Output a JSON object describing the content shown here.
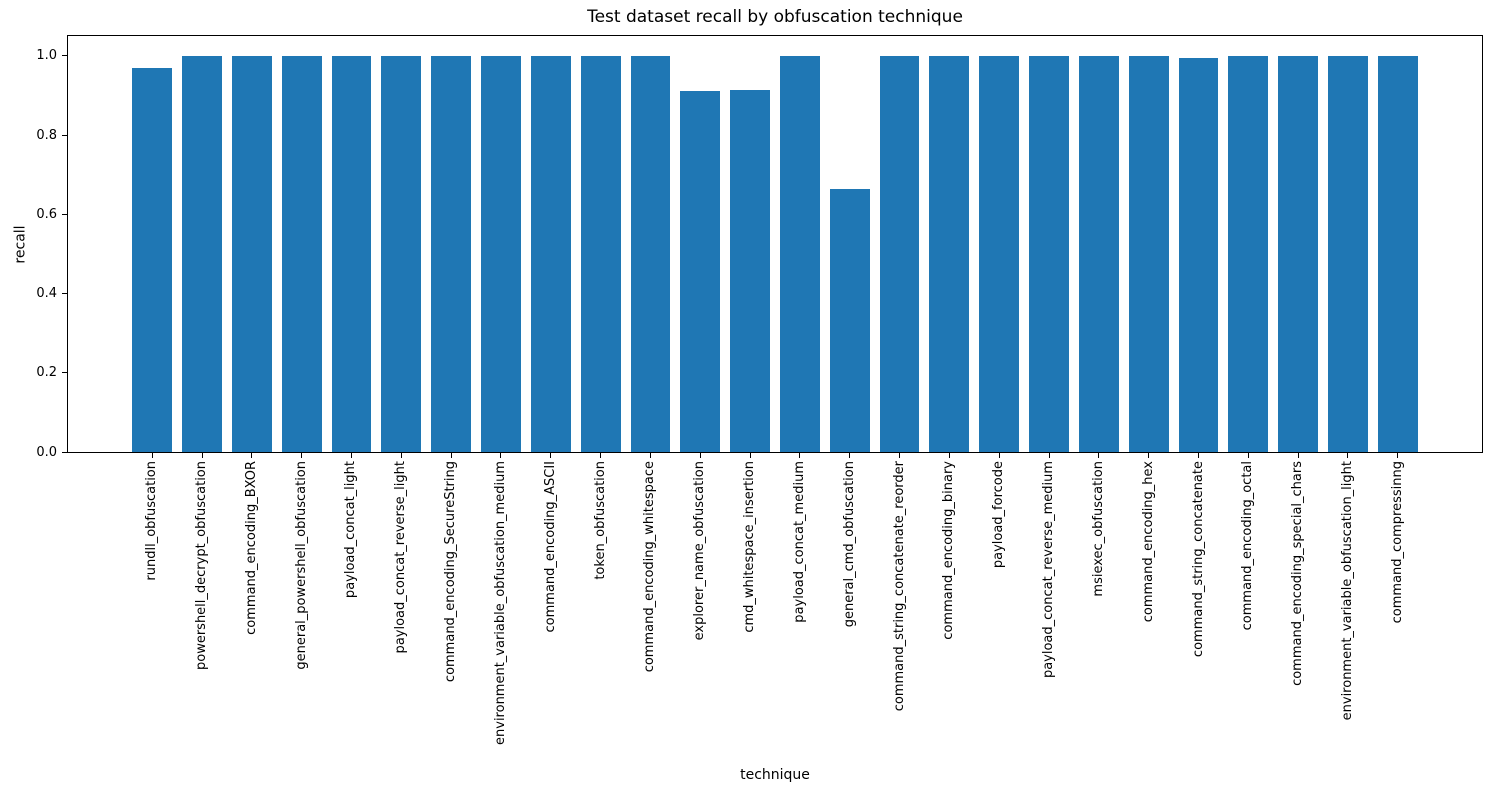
{
  "chart_data": {
    "type": "bar",
    "title": "Test dataset recall by obfuscation technique",
    "xlabel": "technique",
    "ylabel": "recall",
    "categories": [
      "rundll_obfuscation",
      "powershell_decrypt_obfuscation",
      "command_encoding_BXOR",
      "general_powershell_obfuscation",
      "payload_concat_light",
      "payload_concat_reverse_light",
      "command_encoding_SecureString",
      "environment_variable_obfuscation_medium",
      "command_encoding_ASCII",
      "token_obfuscation",
      "command_encoding_whitespace",
      "explorer_name_obfuscation",
      "cmd_whitespace_insertion",
      "payload_concat_medium",
      "general_cmd_obfuscation",
      "command_string_concatenate_reorder",
      "command_encoding_binary",
      "payload_forcode",
      "payload_concat_reverse_medium",
      "msiexec_obfuscation",
      "command_encoding_hex",
      "command_string_concatenate",
      "command_encoding_octal",
      "command_encoding_special_chars",
      "environment_variable_obfuscation_light",
      "command_compressinng"
    ],
    "values": [
      0.97,
      1.0,
      1.0,
      1.0,
      1.0,
      1.0,
      1.0,
      1.0,
      1.0,
      1.0,
      1.0,
      0.91,
      0.915,
      1.0,
      0.665,
      1.0,
      1.0,
      1.0,
      1.0,
      1.0,
      1.0,
      0.995,
      1.0,
      1.0,
      1.0,
      1.0
    ],
    "yticks": [
      0.0,
      0.2,
      0.4,
      0.6,
      0.8,
      1.0
    ],
    "ylim": [
      0,
      1.05
    ],
    "bar_color": "#1f77b4",
    "axis_color": "#000000",
    "background": "#ffffff",
    "grid": false,
    "legend": "none",
    "bar_width_fraction": 0.8
  }
}
